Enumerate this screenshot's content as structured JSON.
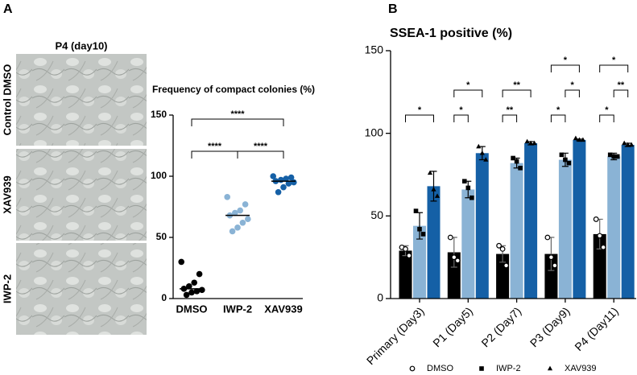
{
  "panel_labels": [
    "A",
    "B"
  ],
  "image_panel": {
    "title": "P4 (day10)",
    "rows": [
      "Control DMSO",
      "XAV939",
      "IWP-2"
    ]
  },
  "chart_data": [
    {
      "type": "dot",
      "title": "Frequency of compact colonies (%)",
      "categories": [
        "DMSO",
        "IWP-2",
        "XAV939"
      ],
      "values": [
        [
          30,
          20,
          13,
          10,
          8,
          7,
          6,
          5,
          3
        ],
        [
          83,
          77,
          72,
          70,
          68,
          65,
          62,
          58,
          55
        ],
        [
          100,
          99,
          98,
          97,
          96,
          95,
          94,
          91,
          87
        ]
      ],
      "medians": [
        8,
        68,
        96
      ],
      "colors": [
        "#000000",
        "#8ab3d5",
        "#1560a6"
      ],
      "ylim": [
        0,
        150
      ],
      "yticks": [
        0,
        50,
        100,
        150
      ],
      "significance": [
        {
          "groups": [
            "DMSO",
            "IWP-2"
          ],
          "label": "****"
        },
        {
          "groups": [
            "IWP-2",
            "XAV939"
          ],
          "label": "****"
        },
        {
          "groups": [
            "DMSO",
            "XAV939"
          ],
          "label": "****"
        }
      ]
    },
    {
      "type": "bar",
      "title": "SSEA-1 positive (%)",
      "categories": [
        "Primary (Day3)",
        "P1 (Day5)",
        "P2 (Day7)",
        "P3 (Day9)",
        "P4 (Day11)"
      ],
      "series": [
        {
          "name": "DMSO",
          "color": "#000000",
          "marker": "circle",
          "values": [
            29,
            28,
            27,
            27,
            39
          ],
          "errors": [
            3,
            9,
            5,
            10,
            9
          ],
          "points": [
            [
              31,
              30,
              26
            ],
            [
              37,
              25,
              23
            ],
            [
              32,
              30,
              20
            ],
            [
              37,
              25,
              20
            ],
            [
              48,
              38,
              31
            ]
          ]
        },
        {
          "name": "IWP-2",
          "color": "#8ab3d5",
          "marker": "square",
          "values": [
            44,
            66,
            82,
            84,
            86
          ],
          "errors": [
            8,
            5,
            3,
            4,
            2
          ],
          "points": [
            [
              53,
              42,
              39
            ],
            [
              71,
              67,
              61
            ],
            [
              85,
              83,
              79
            ],
            [
              87,
              84,
              82
            ],
            [
              87,
              86,
              86
            ]
          ]
        },
        {
          "name": "XAV939",
          "color": "#1560a6",
          "marker": "triangle",
          "values": [
            68,
            88,
            94,
            96,
            93
          ],
          "errors": [
            9,
            4,
            1,
            0.5,
            1
          ],
          "points": [
            [
              76,
              66,
              62
            ],
            [
              92,
              88,
              84
            ],
            [
              95,
              94,
              94
            ],
            [
              97,
              96,
              96
            ],
            [
              94,
              93,
              93
            ]
          ]
        }
      ],
      "ylim": [
        0,
        150
      ],
      "yticks": [
        0,
        50,
        100,
        150
      ],
      "significance": [
        {
          "category": "Primary (Day3)",
          "groups": [
            "DMSO",
            "XAV939"
          ],
          "label": "*"
        },
        {
          "category": "P1 (Day5)",
          "groups": [
            "DMSO",
            "IWP-2"
          ],
          "label": "*"
        },
        {
          "category": "P1 (Day5)",
          "groups": [
            "DMSO",
            "XAV939"
          ],
          "label": "*"
        },
        {
          "category": "P2 (Day7)",
          "groups": [
            "DMSO",
            "IWP-2"
          ],
          "label": "**"
        },
        {
          "category": "P2 (Day7)",
          "groups": [
            "DMSO",
            "XAV939"
          ],
          "label": "**"
        },
        {
          "category": "P3 (Day9)",
          "groups": [
            "DMSO",
            "IWP-2"
          ],
          "label": "*"
        },
        {
          "category": "P3 (Day9)",
          "groups": [
            "IWP-2",
            "XAV939"
          ],
          "label": "*"
        },
        {
          "category": "P3 (Day9)",
          "groups": [
            "DMSO",
            "XAV939"
          ],
          "label": "*"
        },
        {
          "category": "P4 (Day11)",
          "groups": [
            "DMSO",
            "IWP-2"
          ],
          "label": "*"
        },
        {
          "category": "P4 (Day11)",
          "groups": [
            "IWP-2",
            "XAV939"
          ],
          "label": "**"
        },
        {
          "category": "P4 (Day11)",
          "groups": [
            "DMSO",
            "XAV939"
          ],
          "label": "*"
        }
      ]
    }
  ]
}
